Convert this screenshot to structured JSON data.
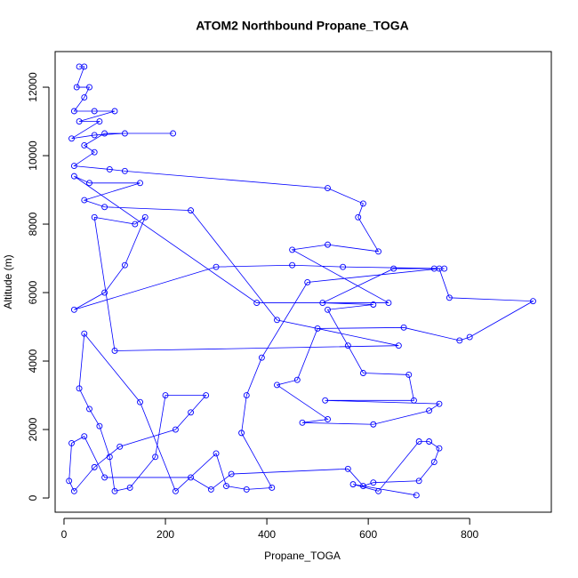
{
  "chart_data": {
    "type": "line",
    "title": "ATOM2 Northbound Propane_TOGA",
    "xlabel": "Propane_TOGA",
    "ylabel": "Altitude (m)",
    "x": [
      30,
      40,
      25,
      50,
      40,
      20,
      60,
      100,
      30,
      70,
      15,
      60,
      120,
      215,
      80,
      40,
      60,
      20,
      90,
      120,
      520,
      590,
      580,
      620,
      520,
      450,
      640,
      380,
      20,
      50,
      150,
      40,
      80,
      250,
      420,
      660,
      100,
      60,
      140,
      160,
      120,
      80,
      20,
      300,
      450,
      550,
      750,
      730,
      650,
      510,
      610,
      520,
      560,
      590,
      680,
      690,
      515,
      740,
      720,
      610,
      470,
      520,
      420,
      460,
      500,
      670,
      780,
      800,
      925,
      760,
      740,
      480,
      390,
      360,
      350,
      410,
      360,
      320,
      300,
      220,
      150,
      40,
      30,
      50,
      70,
      90,
      100,
      130,
      180,
      200,
      280,
      250,
      220,
      110,
      60,
      20,
      10,
      15,
      40,
      80,
      250,
      290,
      330,
      560,
      590,
      610,
      700,
      730,
      740,
      720,
      700,
      620,
      570,
      695
    ],
    "series": [
      {
        "name": "Altitude",
        "color": "#0000ff",
        "values": [
          12600,
          12600,
          12000,
          12000,
          11700,
          11300,
          11300,
          11300,
          11000,
          11000,
          10500,
          10600,
          10650,
          10650,
          10650,
          10300,
          10100,
          9700,
          9600,
          9550,
          9050,
          8600,
          8200,
          7200,
          7400,
          7250,
          5700,
          5700,
          9400,
          9200,
          9200,
          8700,
          8500,
          8400,
          5200,
          4450,
          4300,
          8200,
          8000,
          8200,
          6800,
          6000,
          5500,
          6750,
          6800,
          6750,
          6700,
          6700,
          6700,
          5700,
          5650,
          5500,
          4450,
          3650,
          3600,
          2850,
          2850,
          2750,
          2550,
          2150,
          2200,
          2300,
          3300,
          3450,
          4950,
          4980,
          4600,
          4700,
          5750,
          5850,
          6700,
          6300,
          4100,
          3000,
          1900,
          300,
          250,
          350,
          1300,
          200,
          2800,
          4800,
          3200,
          2600,
          2100,
          1200,
          200,
          300,
          1200,
          3000,
          3000,
          2500,
          2000,
          1500,
          900,
          200,
          500,
          1600,
          1800,
          600,
          600,
          250,
          700,
          850,
          350,
          450,
          500,
          1050,
          1450,
          1650,
          1650,
          200,
          400,
          80
        ]
      }
    ],
    "xlim": [
      -17.5,
      961
    ],
    "ylim": [
      -415,
      13040
    ],
    "xticks": [
      0,
      200,
      400,
      600,
      800
    ],
    "yticks": [
      0,
      2000,
      4000,
      6000,
      8000,
      10000,
      12000
    ]
  }
}
